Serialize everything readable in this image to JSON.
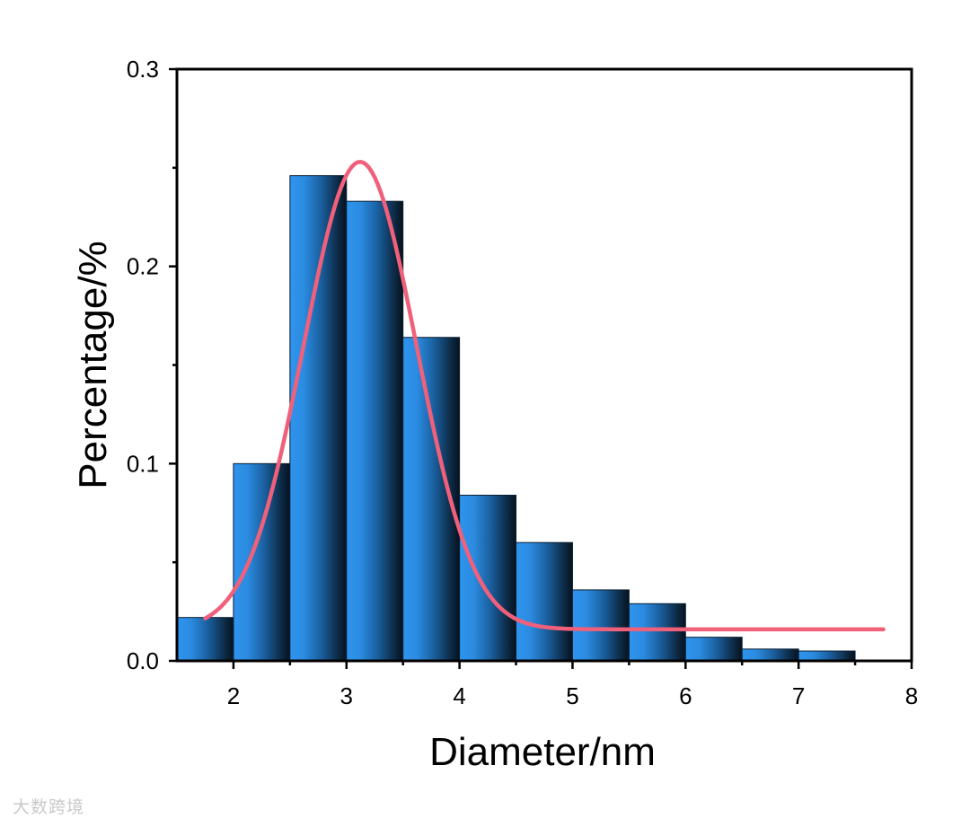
{
  "chart_data": {
    "type": "bar",
    "xlabel": "Diameter/nm",
    "ylabel": "Percentage/%",
    "xlim": [
      1.5,
      8
    ],
    "ylim": [
      0,
      0.3
    ],
    "x_ticks": [
      "2",
      "3",
      "4",
      "5",
      "6",
      "7",
      "8"
    ],
    "y_ticks": [
      "0.0",
      "0.1",
      "0.2",
      "0.3"
    ],
    "bin_width": 0.5,
    "bins": [
      {
        "x0": 1.5,
        "x1": 2.0,
        "value": 0.022
      },
      {
        "x0": 2.0,
        "x1": 2.5,
        "value": 0.1
      },
      {
        "x0": 2.5,
        "x1": 3.0,
        "value": 0.246
      },
      {
        "x0": 3.0,
        "x1": 3.5,
        "value": 0.233
      },
      {
        "x0": 3.5,
        "x1": 4.0,
        "value": 0.164
      },
      {
        "x0": 4.0,
        "x1": 4.5,
        "value": 0.084
      },
      {
        "x0": 4.5,
        "x1": 5.0,
        "value": 0.06
      },
      {
        "x0": 5.0,
        "x1": 5.5,
        "value": 0.036
      },
      {
        "x0": 5.5,
        "x1": 6.0,
        "value": 0.029
      },
      {
        "x0": 6.0,
        "x1": 6.5,
        "value": 0.012
      },
      {
        "x0": 6.5,
        "x1": 7.0,
        "value": 0.006
      },
      {
        "x0": 7.0,
        "x1": 7.5,
        "value": 0.005
      }
    ],
    "fit_curve": {
      "type": "gaussian",
      "color": "#f0607a",
      "x_range": [
        1.75,
        7.75
      ],
      "baseline": 0.016,
      "amplitude": 0.237,
      "center": 3.12,
      "sigma": 0.5
    },
    "bar_color": "#2d8fe8",
    "bar_edge_color": "#0b2033",
    "grid": false
  },
  "watermark": {
    "text": "大数跨境"
  }
}
